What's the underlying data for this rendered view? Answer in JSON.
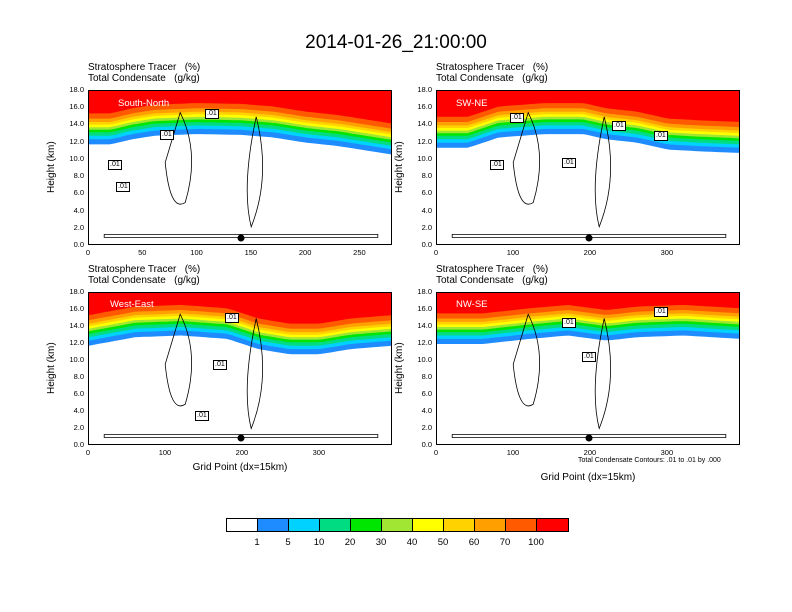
{
  "title": "2014-01-26_21:00:00",
  "panel_title_line1": "Stratosphere Tracer   (%)",
  "panel_title_line2": "Total Condensate   (g/kg)",
  "y_axis_label": "Height (km)",
  "x_axis_label": "Grid Point (dx=15km)",
  "contour_info": "Total Condensate Contours: .01 to .01 by .000",
  "colors": {
    "bins": [
      "#ffffff",
      "#1e8cff",
      "#00d2ff",
      "#00dc82",
      "#00e600",
      "#a0e632",
      "#ffff00",
      "#ffd200",
      "#ffa000",
      "#ff5a00",
      "#ff0000"
    ]
  },
  "legend": {
    "labels": [
      "1",
      "5",
      "10",
      "20",
      "30",
      "40",
      "50",
      "60",
      "70",
      "100"
    ]
  },
  "chart_data": [
    {
      "type": "heatmap",
      "name": "South-North",
      "y_ticks": [
        "0.0",
        "2.0",
        "4.0",
        "6.0",
        "8.0",
        "10.0",
        "12.0",
        "14.0",
        "16.0",
        "18.0"
      ],
      "x_ticks": [
        "0",
        "50",
        "100",
        "150",
        "200",
        "250"
      ],
      "xlim": [
        0,
        280
      ],
      "ylim": [
        0,
        18
      ],
      "contour_labels": [
        ".01",
        ".01",
        ".01",
        ".01"
      ],
      "profile": [
        [
          0,
          15.4
        ],
        [
          20,
          15.4
        ],
        [
          40,
          16.0
        ],
        [
          60,
          16.4
        ],
        [
          100,
          16.6
        ],
        [
          140,
          16.5
        ],
        [
          170,
          16.2
        ],
        [
          200,
          15.6
        ],
        [
          230,
          15.2
        ],
        [
          260,
          14.6
        ],
        [
          280,
          14.2
        ]
      ]
    },
    {
      "type": "heatmap",
      "name": "SW-NE",
      "y_ticks": [
        "0.0",
        "2.0",
        "4.0",
        "6.0",
        "8.0",
        "10.0",
        "12.0",
        "14.0",
        "16.0",
        "18.0"
      ],
      "x_ticks": [
        "0",
        "100",
        "200",
        "300"
      ],
      "xlim": [
        0,
        395
      ],
      "ylim": [
        0,
        18
      ],
      "contour_labels": [
        ".01",
        ".01",
        ".01",
        ".01",
        ".01"
      ],
      "profile": [
        [
          0,
          15.0
        ],
        [
          40,
          15.0
        ],
        [
          80,
          16.2
        ],
        [
          140,
          16.6
        ],
        [
          190,
          16.6
        ],
        [
          220,
          16.0
        ],
        [
          260,
          15.6
        ],
        [
          300,
          14.8
        ],
        [
          340,
          14.6
        ],
        [
          395,
          14.4
        ]
      ]
    },
    {
      "type": "heatmap",
      "name": "West-East",
      "y_ticks": [
        "0.0",
        "2.0",
        "4.0",
        "6.0",
        "8.0",
        "10.0",
        "12.0",
        "14.0",
        "16.0",
        "18.0"
      ],
      "x_ticks": [
        "0",
        "100",
        "200",
        "300"
      ],
      "xlim": [
        0,
        395
      ],
      "ylim": [
        0,
        18
      ],
      "contour_labels": [
        ".01",
        ".01",
        ".01"
      ],
      "profile": [
        [
          0,
          15.4
        ],
        [
          60,
          16.4
        ],
        [
          120,
          16.6
        ],
        [
          180,
          16.2
        ],
        [
          220,
          15.0
        ],
        [
          260,
          14.4
        ],
        [
          300,
          14.4
        ],
        [
          340,
          15.0
        ],
        [
          395,
          15.4
        ]
      ]
    },
    {
      "type": "heatmap",
      "name": "NW-SE",
      "y_ticks": [
        "0.0",
        "2.0",
        "4.0",
        "6.0",
        "8.0",
        "10.0",
        "12.0",
        "14.0",
        "16.0",
        "18.0"
      ],
      "x_ticks": [
        "0",
        "100",
        "200",
        "300"
      ],
      "xlim": [
        0,
        395
      ],
      "ylim": [
        0,
        18
      ],
      "contour_labels": [
        ".01",
        ".01",
        ".01"
      ],
      "profile": [
        [
          0,
          15.6
        ],
        [
          60,
          15.6
        ],
        [
          120,
          16.2
        ],
        [
          170,
          16.6
        ],
        [
          220,
          16.0
        ],
        [
          260,
          16.4
        ],
        [
          320,
          16.6
        ],
        [
          395,
          16.2
        ]
      ]
    }
  ]
}
